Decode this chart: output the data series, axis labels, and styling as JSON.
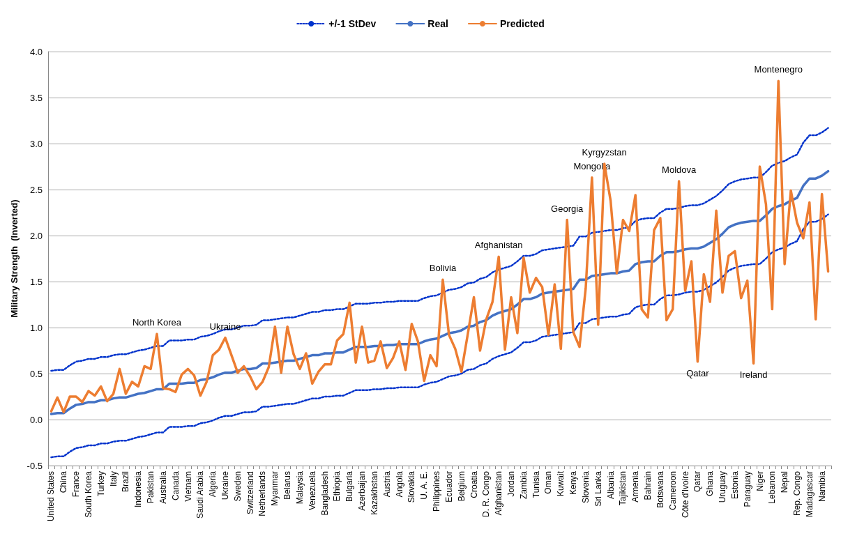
{
  "chart_data": {
    "type": "line",
    "ylabel": "Military Strength  (Inverted)",
    "categories": [
      "United States",
      null,
      "China",
      null,
      "France",
      null,
      "South Korea",
      null,
      "Turkey",
      null,
      "Italy",
      null,
      "Brazil",
      null,
      "Indonesia",
      null,
      "Pakistan",
      null,
      "Australia",
      null,
      "Canada",
      null,
      "Vietnam",
      null,
      "Saudi Arabia",
      null,
      "Algeria",
      null,
      "Ukraine",
      null,
      "Sweden",
      null,
      "Switzerland",
      null,
      "Netherlands",
      null,
      "Myanmar",
      null,
      "Belarus",
      null,
      "Malaysia",
      null,
      "Venezuela",
      null,
      "Bangladesh",
      null,
      "Ethiopia",
      null,
      "Bulgaria",
      null,
      "Azerbaijan",
      null,
      "Kazakhstan",
      null,
      "Austria",
      null,
      "Angola",
      null,
      "Slovakia",
      null,
      "U. A. E.",
      null,
      "Philippines",
      null,
      "Ecuador",
      null,
      "Belgium",
      null,
      "Croatia",
      null,
      "D. R. Congo",
      null,
      "Afghanistan",
      null,
      "Jordan",
      null,
      "Zambia",
      null,
      "Tunisia",
      null,
      "Oman",
      null,
      "Kuwait",
      null,
      "Kenya",
      null,
      "Slovenia",
      null,
      "Sri Lanka",
      null,
      "Albania",
      null,
      "Tajikistan",
      null,
      "Armenia",
      null,
      "Bahrain",
      null,
      "Botswana",
      null,
      "Cameroon",
      null,
      "Côte d'Ivoire",
      null,
      "Qatar",
      null,
      "Ghana",
      null,
      "Uruguay",
      null,
      "Estonia",
      null,
      "Paraguay",
      null,
      "Niger",
      null,
      "Lebanon",
      null,
      "Nepal",
      null,
      "Rep. Congo",
      null,
      "Madagascar",
      null,
      "Namibia",
      null
    ],
    "series": [
      {
        "name": "+/-1 StDev",
        "color": "#0033cc",
        "line_style": "dotted",
        "values": [
          0.53,
          0.54,
          0.54,
          0.59,
          0.63,
          0.64,
          0.66,
          0.66,
          0.68,
          0.68,
          0.7,
          0.71,
          0.71,
          0.73,
          0.75,
          0.76,
          0.78,
          0.8,
          0.8,
          0.86,
          0.86,
          0.86,
          0.87,
          0.87,
          0.9,
          0.91,
          0.93,
          0.96,
          0.98,
          0.98,
          1.0,
          1.02,
          1.02,
          1.03,
          1.08,
          1.08,
          1.09,
          1.1,
          1.11,
          1.11,
          1.13,
          1.15,
          1.17,
          1.17,
          1.19,
          1.19,
          1.2,
          1.2,
          1.23,
          1.26,
          1.26,
          1.26,
          1.27,
          1.27,
          1.28,
          1.28,
          1.29,
          1.29,
          1.29,
          1.29,
          1.32,
          1.34,
          1.35,
          1.38,
          1.41,
          1.42,
          1.44,
          1.48,
          1.49,
          1.53,
          1.55,
          1.6,
          1.63,
          1.65,
          1.67,
          1.72,
          1.78,
          1.78,
          1.8,
          1.84,
          1.85,
          1.86,
          1.87,
          1.88,
          1.89,
          1.99,
          1.99,
          2.03,
          2.04,
          2.05,
          2.06,
          2.06,
          2.08,
          2.09,
          2.16,
          2.18,
          2.19,
          2.19,
          2.25,
          2.29,
          2.29,
          2.3,
          2.32,
          2.33,
          2.33,
          2.35,
          2.39,
          2.43,
          2.49,
          2.56,
          2.59,
          2.61,
          2.62,
          2.63,
          2.63,
          2.69,
          2.76,
          2.79,
          2.81,
          2.85,
          2.88,
          3.01,
          3.09,
          3.09,
          3.12,
          3.17
        ]
      },
      {
        "color": "#0033cc",
        "line_style": "dotted",
        "values": [
          -0.41,
          -0.4,
          -0.4,
          -0.35,
          -0.31,
          -0.3,
          -0.28,
          -0.28,
          -0.26,
          -0.26,
          -0.24,
          -0.23,
          -0.23,
          -0.21,
          -0.19,
          -0.18,
          -0.16,
          -0.14,
          -0.14,
          -0.08,
          -0.08,
          -0.08,
          -0.07,
          -0.07,
          -0.04,
          -0.03,
          -0.01,
          0.02,
          0.04,
          0.04,
          0.06,
          0.08,
          0.08,
          0.09,
          0.14,
          0.14,
          0.15,
          0.16,
          0.17,
          0.17,
          0.19,
          0.21,
          0.23,
          0.23,
          0.25,
          0.25,
          0.26,
          0.26,
          0.29,
          0.32,
          0.32,
          0.32,
          0.33,
          0.33,
          0.34,
          0.34,
          0.35,
          0.35,
          0.35,
          0.35,
          0.38,
          0.4,
          0.41,
          0.44,
          0.47,
          0.48,
          0.5,
          0.54,
          0.55,
          0.59,
          0.61,
          0.66,
          0.69,
          0.71,
          0.73,
          0.78,
          0.84,
          0.84,
          0.86,
          0.9,
          0.91,
          0.92,
          0.93,
          0.94,
          0.95,
          1.05,
          1.05,
          1.09,
          1.1,
          1.11,
          1.12,
          1.12,
          1.14,
          1.15,
          1.22,
          1.24,
          1.25,
          1.25,
          1.31,
          1.35,
          1.35,
          1.36,
          1.38,
          1.39,
          1.39,
          1.41,
          1.45,
          1.49,
          1.55,
          1.62,
          1.65,
          1.67,
          1.68,
          1.69,
          1.69,
          1.75,
          1.82,
          1.85,
          1.87,
          1.91,
          1.94,
          2.07,
          2.15,
          2.15,
          2.18,
          2.23
        ]
      },
      {
        "name": "Real",
        "color": "#4472c4",
        "values": [
          0.06,
          0.07,
          0.07,
          0.12,
          0.16,
          0.17,
          0.19,
          0.19,
          0.21,
          0.21,
          0.23,
          0.24,
          0.24,
          0.26,
          0.28,
          0.29,
          0.31,
          0.33,
          0.33,
          0.39,
          0.39,
          0.39,
          0.4,
          0.4,
          0.43,
          0.44,
          0.46,
          0.49,
          0.51,
          0.51,
          0.53,
          0.55,
          0.55,
          0.56,
          0.61,
          0.61,
          0.62,
          0.63,
          0.64,
          0.64,
          0.66,
          0.68,
          0.7,
          0.7,
          0.72,
          0.72,
          0.73,
          0.73,
          0.76,
          0.79,
          0.79,
          0.79,
          0.8,
          0.8,
          0.81,
          0.81,
          0.82,
          0.82,
          0.82,
          0.82,
          0.85,
          0.87,
          0.88,
          0.91,
          0.94,
          0.95,
          0.97,
          1.01,
          1.02,
          1.06,
          1.08,
          1.13,
          1.16,
          1.18,
          1.2,
          1.25,
          1.31,
          1.31,
          1.33,
          1.37,
          1.38,
          1.39,
          1.4,
          1.41,
          1.42,
          1.52,
          1.52,
          1.56,
          1.57,
          1.58,
          1.59,
          1.59,
          1.61,
          1.62,
          1.69,
          1.71,
          1.72,
          1.72,
          1.78,
          1.82,
          1.82,
          1.83,
          1.85,
          1.86,
          1.86,
          1.88,
          1.92,
          1.96,
          2.02,
          2.09,
          2.12,
          2.14,
          2.15,
          2.16,
          2.16,
          2.22,
          2.29,
          2.32,
          2.34,
          2.38,
          2.41,
          2.54,
          2.62,
          2.62,
          2.65,
          2.7
        ]
      },
      {
        "name": "Predicted",
        "color": "#ed7d31",
        "values": [
          0.09,
          0.24,
          0.08,
          0.25,
          0.25,
          0.19,
          0.31,
          0.26,
          0.36,
          0.2,
          0.28,
          0.55,
          0.28,
          0.41,
          0.36,
          0.58,
          0.55,
          0.93,
          0.34,
          0.33,
          0.3,
          0.49,
          0.55,
          0.48,
          0.26,
          0.41,
          0.7,
          0.76,
          0.89,
          0.7,
          0.51,
          0.58,
          0.47,
          0.33,
          0.41,
          0.57,
          1.01,
          0.51,
          1.01,
          0.71,
          0.55,
          0.72,
          0.39,
          0.52,
          0.6,
          0.6,
          0.86,
          0.93,
          1.27,
          0.62,
          1.01,
          0.62,
          0.64,
          0.85,
          0.56,
          0.67,
          0.85,
          0.54,
          1.04,
          0.85,
          0.42,
          0.7,
          0.58,
          1.52,
          0.92,
          0.77,
          0.52,
          0.92,
          1.33,
          0.75,
          1.09,
          1.28,
          1.77,
          0.76,
          1.33,
          0.94,
          1.76,
          1.38,
          1.54,
          1.44,
          0.92,
          1.47,
          0.77,
          2.17,
          0.95,
          0.79,
          1.43,
          2.63,
          1.03,
          2.78,
          2.38,
          1.59,
          2.17,
          2.05,
          2.44,
          1.2,
          1.11,
          2.06,
          2.19,
          1.08,
          1.2,
          2.59,
          1.4,
          1.72,
          0.63,
          1.58,
          1.28,
          2.27,
          1.38,
          1.78,
          1.83,
          1.32,
          1.51,
          0.61,
          2.75,
          2.34,
          1.2,
          3.68,
          1.69,
          2.49,
          2.14,
          1.97,
          2.36,
          1.09,
          2.45,
          1.61
        ]
      }
    ],
    "annotations": [
      {
        "text": "North Korea",
        "y": 0.93
      },
      {
        "text": "Ukraine",
        "y": 0.89
      },
      {
        "text": "Bolivia",
        "y": 1.52
      },
      {
        "text": "Afghanistan",
        "y": 1.77
      },
      {
        "text": "Georgia",
        "y": 2.17
      },
      {
        "text": "Mongolia",
        "y": 2.63
      },
      {
        "text": "Kyrgyzstan",
        "y": 2.78
      },
      {
        "text": "Moldova",
        "y": 2.59
      },
      {
        "text": "Qatar",
        "y": 0.63
      },
      {
        "text": "Ireland",
        "y": 0.61
      },
      {
        "text": "Montenegro",
        "y": 3.68
      }
    ],
    "ylim": [
      -0.5,
      4.0
    ],
    "yticks": [
      {
        "value": -0.5,
        "label": "-0.5"
      },
      {
        "value": 0,
        "label": "0.0"
      },
      {
        "value": 0.5,
        "label": "0.5"
      },
      {
        "value": 1,
        "label": "1.0"
      },
      {
        "value": 1.5,
        "label": "1.5"
      },
      {
        "value": 2,
        "label": "2.0"
      },
      {
        "value": 2.5,
        "label": "2.5"
      },
      {
        "value": 3,
        "label": "3.0"
      },
      {
        "value": 3.5,
        "label": "3.5"
      },
      {
        "value": 4,
        "label": "4.0"
      }
    ],
    "grid": "y",
    "legend": "top",
    "marker": "none",
    "line_style": "solid"
  }
}
